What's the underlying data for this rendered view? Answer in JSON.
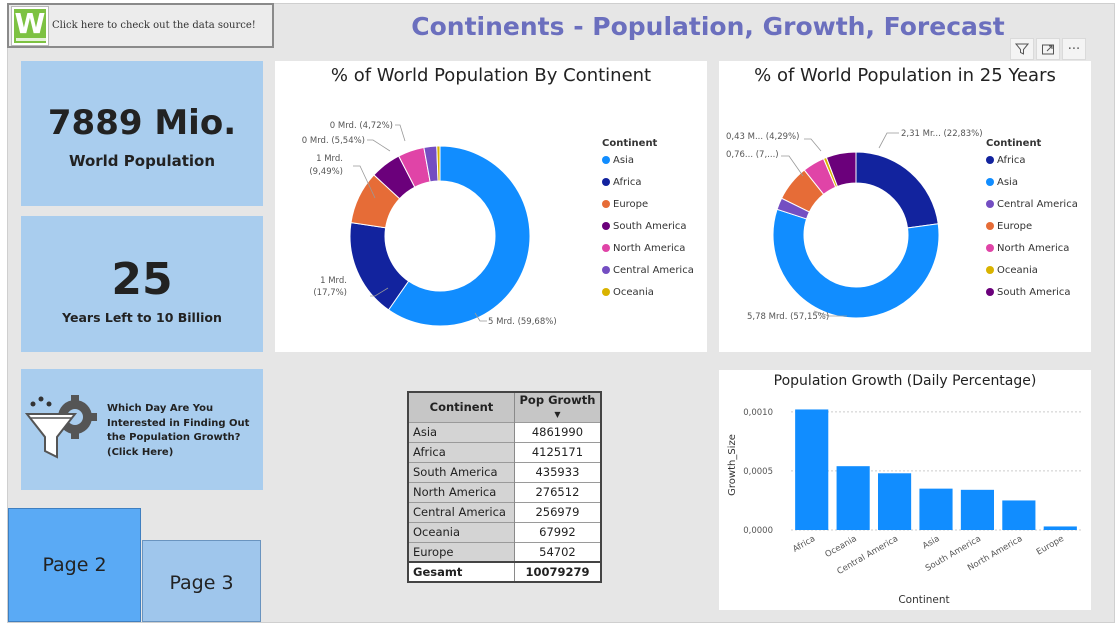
{
  "header": {
    "source_link": "Click here to check out the data source!",
    "logo_letter": "W",
    "title": "Continents - Population, Growth, Forecast"
  },
  "toolbar": {
    "icons": [
      "filter-icon",
      "focus-mode-icon",
      "more-options-icon"
    ],
    "more_glyph": "···"
  },
  "kpis": {
    "population": {
      "value": "7889 Mio.",
      "label": "World Population"
    },
    "years": {
      "value": "25",
      "label": "Years Left to 10 Billion"
    }
  },
  "day_card": {
    "text_lines": [
      "Which Day Are You",
      "Interested in Finding Out",
      "the Population Growth?",
      "(Click Here)"
    ]
  },
  "pages": {
    "page2": "Page 2",
    "page3": "Page 3"
  },
  "donut_now": {
    "title": "% of World Population By Continent",
    "legend_title": "Continent",
    "legend": [
      {
        "name": "Asia",
        "color": "#118dff"
      },
      {
        "name": "Africa",
        "color": "#12239e"
      },
      {
        "name": "Europe",
        "color": "#e66c37"
      },
      {
        "name": "South America",
        "color": "#6b007b"
      },
      {
        "name": "North America",
        "color": "#e044a7"
      },
      {
        "name": "Central America",
        "color": "#744ec2"
      },
      {
        "name": "Oceania",
        "color": "#d9b300"
      }
    ],
    "labels": {
      "asia": "5 Mrd. (59,68%)",
      "africa_1": "1 Mrd.",
      "africa_2": "(17,7%)",
      "europe_1": "1 Mrd.",
      "europe_2": "(9,49%)",
      "south_america": "0 Mrd. (5,54%)",
      "north_america": "0 Mrd. (4,72%)"
    }
  },
  "donut_future": {
    "title": "% of World Population in 25 Years",
    "legend_title": "Continent",
    "legend": [
      {
        "name": "Africa",
        "color": "#12239e"
      },
      {
        "name": "Asia",
        "color": "#118dff"
      },
      {
        "name": "Central America",
        "color": "#744ec2"
      },
      {
        "name": "Europe",
        "color": "#e66c37"
      },
      {
        "name": "North America",
        "color": "#e044a7"
      },
      {
        "name": "Oceania",
        "color": "#d9b300"
      },
      {
        "name": "South America",
        "color": "#6b007b"
      }
    ],
    "labels": {
      "africa": "2,31 Mr... (22,83%)",
      "asia": "5,78 Mrd. (57,15%)",
      "europe": "0,76... (7,...)",
      "north_america": "0,43 M... (4,29%)"
    }
  },
  "table": {
    "headers": [
      "Continent",
      "Pop Growth"
    ],
    "rows": [
      [
        "Asia",
        "4861990"
      ],
      [
        "Africa",
        "4125171"
      ],
      [
        "South America",
        "435933"
      ],
      [
        "North America",
        "276512"
      ],
      [
        "Central America",
        "256979"
      ],
      [
        "Oceania",
        "67992"
      ],
      [
        "Europe",
        "54702"
      ]
    ],
    "total_label": "Gesamt",
    "total_value": "10079279"
  },
  "chart_data": [
    {
      "type": "pie",
      "title": "% of World Population By Continent",
      "legend_title": "Continent",
      "categories": [
        "Asia",
        "Africa",
        "Europe",
        "South America",
        "North America",
        "Central America",
        "Oceania"
      ],
      "values": [
        59.68,
        17.7,
        9.49,
        5.54,
        4.72,
        2.3,
        0.57
      ],
      "colors": [
        "#118dff",
        "#12239e",
        "#e66c37",
        "#6b007b",
        "#e044a7",
        "#744ec2",
        "#d9b300"
      ],
      "legend_position": "right"
    },
    {
      "type": "pie",
      "title": "% of World Population in 25 Years",
      "legend_title": "Continent",
      "categories": [
        "Africa",
        "Asia",
        "Central America",
        "Europe",
        "North America",
        "Oceania",
        "South America"
      ],
      "values": [
        22.83,
        57.15,
        2.3,
        7.0,
        4.29,
        0.6,
        5.8
      ],
      "colors": [
        "#12239e",
        "#118dff",
        "#744ec2",
        "#e66c37",
        "#e044a7",
        "#d9b300",
        "#6b007b"
      ],
      "legend_position": "right"
    },
    {
      "type": "bar",
      "title": "Population Growth (Daily Percentage)",
      "xlabel": "Continent",
      "ylabel": "Growth_Size",
      "categories": [
        "Africa",
        "Oceania",
        "Central America",
        "Asia",
        "South America",
        "North America",
        "Europe"
      ],
      "values": [
        0.00102,
        0.00054,
        0.00048,
        0.00035,
        0.00034,
        0.00025,
        3e-05
      ],
      "ylim": [
        0,
        0.0011
      ],
      "yticks": [
        "0,0000",
        "0,0005",
        "0,0010"
      ],
      "ytick_values": [
        0,
        0.0005,
        0.001
      ],
      "color": "#118dff"
    }
  ]
}
